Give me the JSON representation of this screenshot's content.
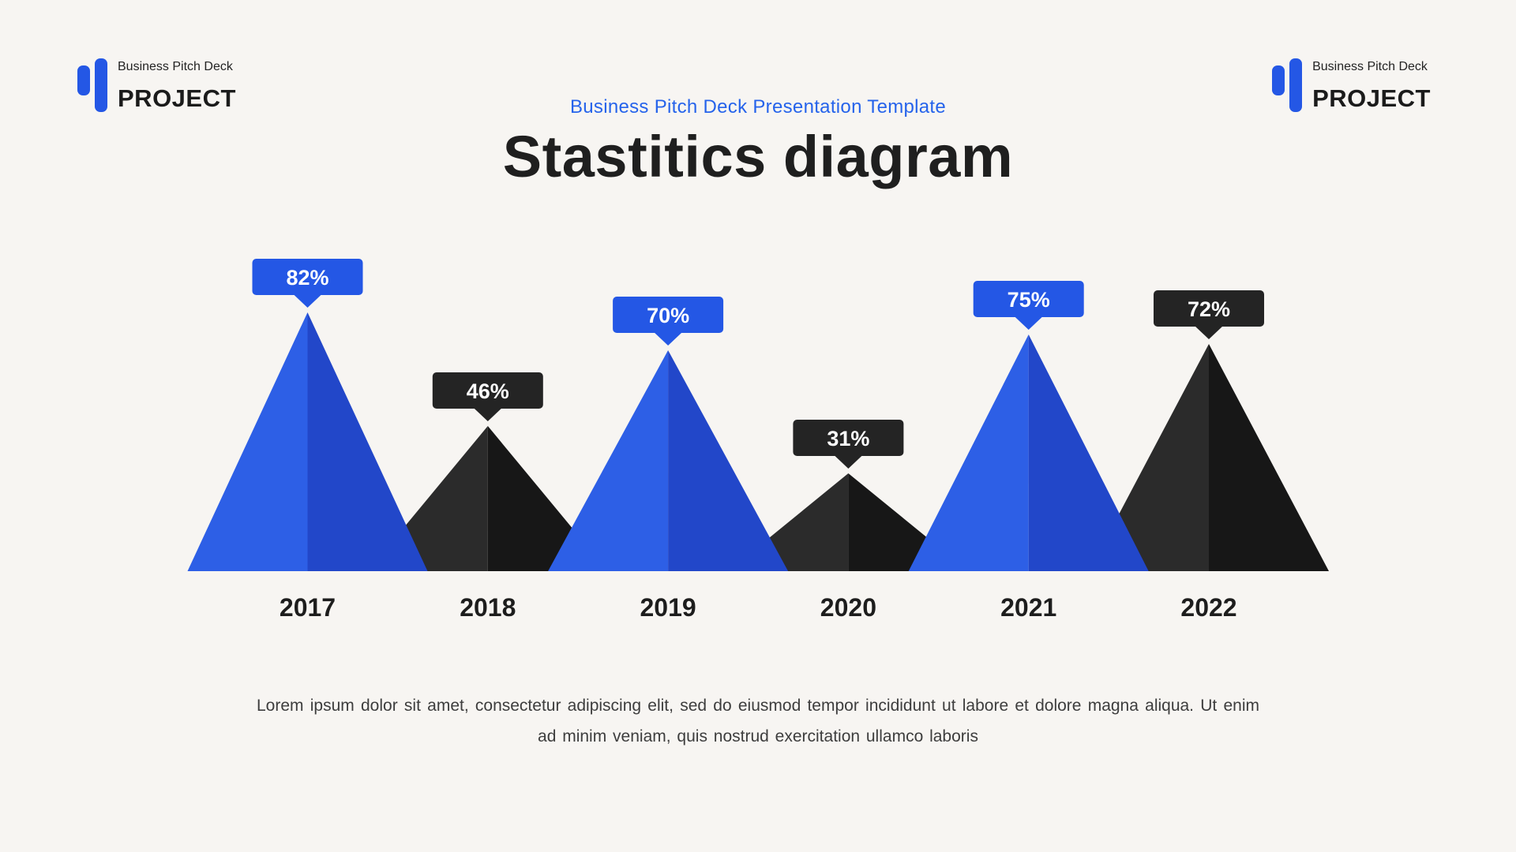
{
  "brand": {
    "small_label": "Business Pitch Deck",
    "big_label": "PROJECT",
    "accent_color": "#2457e5"
  },
  "header": {
    "subtitle": "Business Pitch Deck Presentation Template",
    "title": "Stastitics diagram"
  },
  "footer": {
    "paragraph": "Lorem ipsum dolor sit amet, consectetur adipiscing elit, sed do eiusmod tempor incididunt ut labore et dolore magna aliqua. Ut enim ad minim veniam, quis nostrud exercitation ullamco laboris"
  },
  "chart_data": {
    "type": "area",
    "shape": "triangle-peaks",
    "title": "Stastitics diagram",
    "categories": [
      "2017",
      "2018",
      "2019",
      "2020",
      "2021",
      "2022"
    ],
    "values": [
      82,
      46,
      70,
      31,
      75,
      72
    ],
    "value_labels": [
      "82%",
      "46%",
      "70%",
      "31%",
      "75%",
      "72%"
    ],
    "themes": [
      "blue",
      "dark",
      "blue",
      "dark",
      "blue",
      "dark"
    ],
    "ylim": [
      0,
      100
    ],
    "grid": false,
    "legend": false,
    "palette": {
      "blue": {
        "left": "#2d5fe6",
        "right": "#2247c9",
        "badge": "#2457e5",
        "label_text": "#ffffff"
      },
      "dark": {
        "left": "#2b2b2b",
        "right": "#171717",
        "badge": "#242424",
        "label_text": "#ffffff"
      }
    },
    "axis_label_color": "#1d1d1d"
  }
}
